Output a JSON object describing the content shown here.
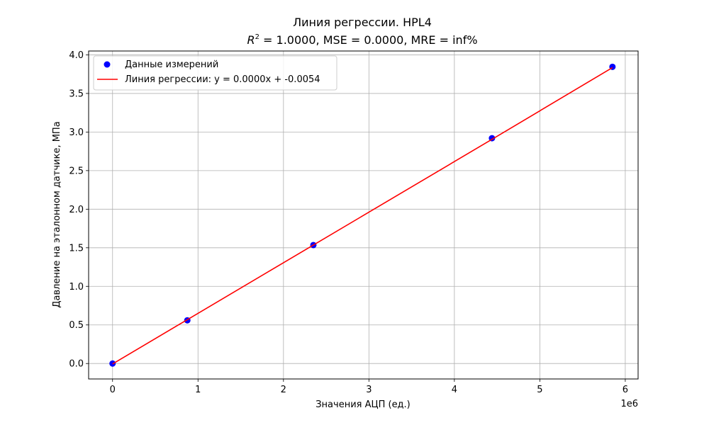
{
  "chart_data": {
    "type": "scatter",
    "title": "Линия регрессии. HPL4",
    "subtitle_prefix": "R",
    "subtitle_sup": "2",
    "subtitle_rest": " = 1.0000, MSE = 0.0000, MRE = inf%",
    "xlabel": "Значения АЦП (ед.)",
    "ylabel": "Давление на эталонном датчике, МПа",
    "x_offset_label": "1e6",
    "xlim": [
      -0.28,
      6.15
    ],
    "ylim": [
      -0.2,
      4.05
    ],
    "grid": true,
    "legend_position": "top-left",
    "x_ticks": [
      0,
      1,
      2,
      3,
      4,
      5,
      6
    ],
    "x_tick_labels": [
      "0",
      "1",
      "2",
      "3",
      "4",
      "5",
      "6"
    ],
    "y_ticks": [
      0,
      0.5,
      1,
      1.5,
      2,
      2.5,
      3,
      3.5,
      4
    ],
    "y_tick_labels": [
      "0.0",
      "0.5",
      "1.0",
      "1.5",
      "2.0",
      "2.5",
      "3.0",
      "3.5",
      "4.0"
    ],
    "series": [
      {
        "name": "Данные измерений",
        "kind": "scatter",
        "color": "#0000ff",
        "x": [
          0,
          0.875,
          2.35,
          4.44,
          5.85
        ],
        "y": [
          0,
          0.56,
          1.535,
          2.92,
          3.845
        ]
      },
      {
        "name": "Линия регрессии: y = 0.0000x + -0.0054",
        "kind": "line",
        "color": "#ff0000",
        "x": [
          0,
          0.875,
          2.35,
          4.44,
          5.85
        ],
        "y": [
          -0.0054,
          0.5686,
          1.5354,
          2.9052,
          3.8354
        ]
      }
    ]
  }
}
